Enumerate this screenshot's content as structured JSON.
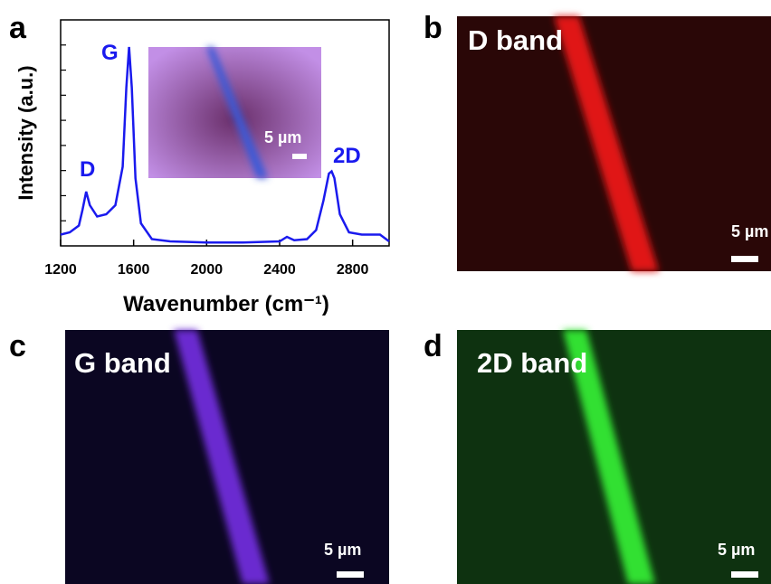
{
  "panel_labels": [
    "a",
    "b",
    "c",
    "d"
  ],
  "chart_data": {
    "type": "line",
    "ylabel": "Intensity (a.u.)",
    "xlabel": "Wavenumber (cm⁻¹)",
    "color": "#1a1aee",
    "x": [
      1200,
      1250,
      1300,
      1320,
      1340,
      1360,
      1400,
      1450,
      1500,
      1540,
      1560,
      1575,
      1590,
      1610,
      1640,
      1700,
      1800,
      2000,
      2200,
      2400,
      2440,
      2480,
      2550,
      2600,
      2640,
      2670,
      2685,
      2700,
      2730,
      2780,
      2850,
      2950,
      3000
    ],
    "values": [
      5,
      6,
      9,
      16,
      24,
      18,
      13,
      14,
      18,
      35,
      70,
      88,
      70,
      30,
      10,
      3,
      2,
      1.5,
      1.5,
      2,
      4,
      2.5,
      3,
      7,
      20,
      32,
      33,
      30,
      14,
      6,
      5,
      5,
      2
    ],
    "xlim": [
      1200,
      3000
    ],
    "xticks": [
      1200,
      1600,
      2000,
      2400,
      2800
    ],
    "ylim": [
      0,
      100
    ],
    "annotations": [
      "D",
      "G",
      "2D"
    ],
    "inset_scale": "5 µm"
  },
  "images": [
    {
      "title": "D band",
      "scale": "5 µm"
    },
    {
      "title": "G band",
      "scale": "5 µm"
    },
    {
      "title": "2D band",
      "scale": "5 µm"
    }
  ]
}
